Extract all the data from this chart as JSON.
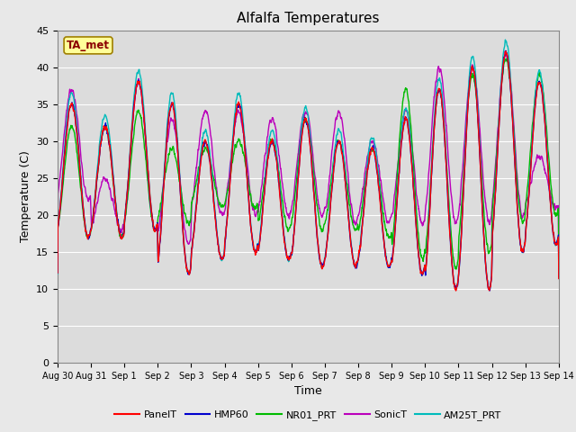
{
  "title": "Alfalfa Temperatures",
  "xlabel": "Time",
  "ylabel": "Temperature (C)",
  "ylim": [
    0,
    45
  ],
  "yticks": [
    0,
    5,
    10,
    15,
    20,
    25,
    30,
    35,
    40,
    45
  ],
  "annotation_text": "TA_met",
  "annotation_color": "#8B0000",
  "annotation_bg": "#FFFF99",
  "plot_bg": "#DCDCDC",
  "fig_bg": "#E8E8E8",
  "grid_color": "#FFFFFF",
  "series_colors": {
    "PanelT": "#FF0000",
    "HMP60": "#0000CD",
    "NR01_PRT": "#00BB00",
    "SonicT": "#BB00BB",
    "AM25T_PRT": "#00BBBB"
  },
  "x_labels": [
    "Aug 30",
    "Aug 31",
    "Sep 1",
    "Sep 2",
    "Sep 3",
    "Sep 4",
    "Sep 5",
    "Sep 6",
    "Sep 7",
    "Sep 8",
    "Sep 9",
    "Sep 10",
    "Sep 11",
    "Sep 12",
    "Sep 13",
    "Sep 14"
  ],
  "num_days": 15,
  "linewidth": 1.0
}
